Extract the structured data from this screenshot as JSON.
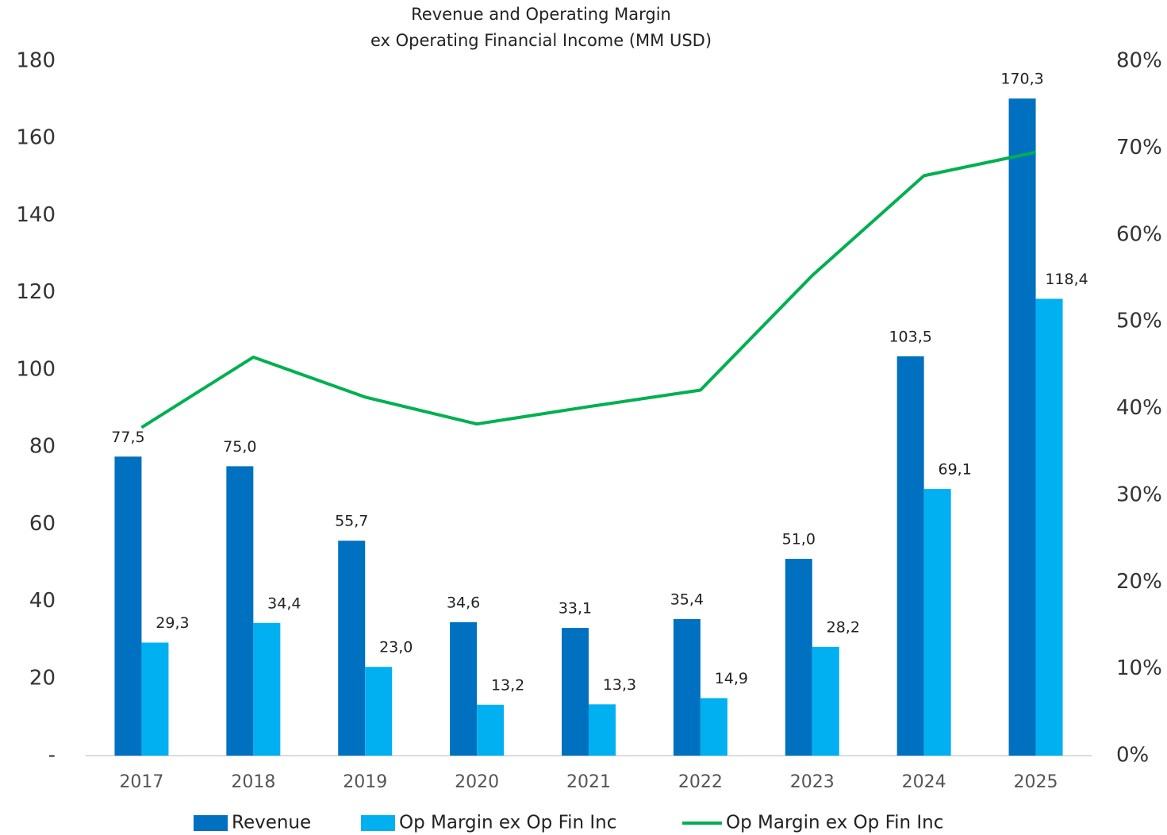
{
  "chart_data": {
    "type": "bar",
    "title": "Revenue and Operating Margin",
    "subtitle": "ex Operating Financial Income (MM USD)",
    "categories": [
      "2017",
      "2018",
      "2019",
      "2020",
      "2021",
      "2022",
      "2023",
      "2024",
      "2025"
    ],
    "series": [
      {
        "name": "Revenue",
        "type": "bar",
        "color": "#0070c0",
        "values": [
          77.5,
          75.0,
          55.7,
          34.6,
          33.1,
          35.4,
          51.0,
          103.5,
          170.3
        ],
        "value_labels": [
          "77,5",
          "75,0",
          "55,7",
          "34,6",
          "33,1",
          "35,4",
          "51,0",
          "103,5",
          "170,3"
        ]
      },
      {
        "name": "Op Margin ex Op Fin Inc",
        "type": "bar",
        "color": "#00b0f0",
        "values": [
          29.3,
          34.4,
          23.0,
          13.2,
          13.3,
          14.9,
          28.2,
          69.1,
          118.4
        ],
        "value_labels": [
          "29,3",
          "34,4",
          "23,0",
          "13,2",
          "13,3",
          "14,9",
          "28,2",
          "69,1",
          "118,4"
        ]
      },
      {
        "name": "Op Margin ex Op Fin Inc",
        "type": "line",
        "axis": "y2",
        "color": "#00b050",
        "values": [
          37.8,
          45.9,
          41.3,
          38.2,
          40.2,
          42.1,
          55.3,
          66.8,
          69.5
        ]
      }
    ],
    "ylim": [
      0,
      180
    ],
    "yticks": [
      {
        "value": 0,
        "label": "-"
      },
      20,
      40,
      60,
      80,
      100,
      120,
      140,
      160,
      180
    ],
    "y2lim": [
      0,
      80
    ],
    "y2ticks": [
      {
        "value": 0,
        "label": "0%"
      },
      {
        "value": 10,
        "label": "10%"
      },
      {
        "value": 20,
        "label": "20%"
      },
      {
        "value": 30,
        "label": "30%"
      },
      {
        "value": 40,
        "label": "40%"
      },
      {
        "value": 50,
        "label": "50%"
      },
      {
        "value": 60,
        "label": "60%"
      },
      {
        "value": 70,
        "label": "70%"
      },
      {
        "value": 80,
        "label": "80%"
      }
    ],
    "grid": false,
    "legend": "bottom"
  }
}
